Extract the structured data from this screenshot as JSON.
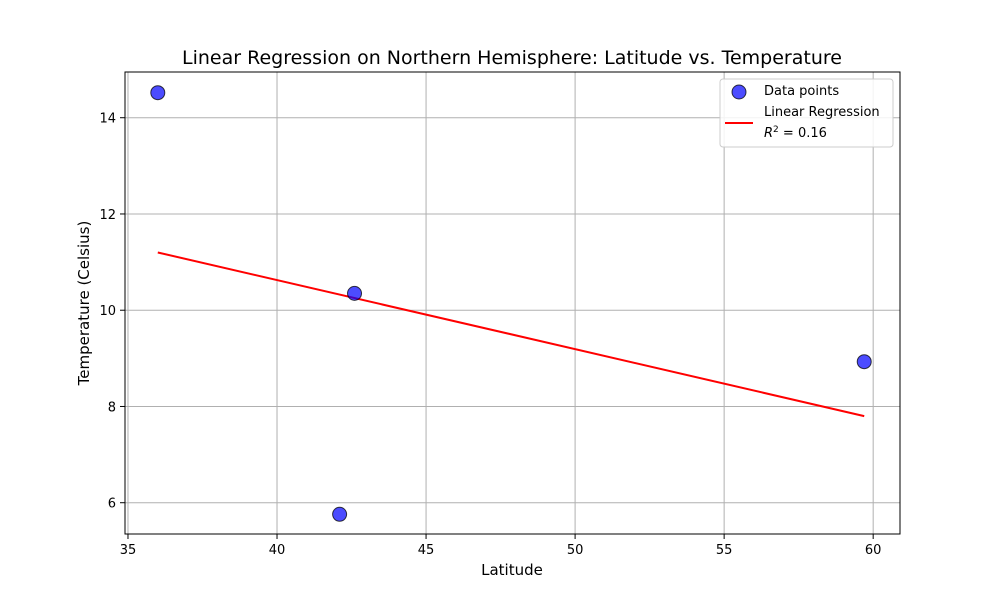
{
  "chart_data": {
    "type": "scatter",
    "title": "Linear Regression on Northern Hemisphere: Latitude vs. Temperature",
    "xlabel": "Latitude",
    "ylabel": "Temperature (Celsius)",
    "xlim": [
      34.9,
      60.9
    ],
    "ylim": [
      5.35,
      14.95
    ],
    "grid": true,
    "legend_position": "top-right",
    "x_ticks": [
      35,
      40,
      45,
      50,
      55,
      60
    ],
    "x_tick_labels": [
      "35",
      "40",
      "45",
      "50",
      "55",
      "60"
    ],
    "y_ticks": [
      6,
      8,
      10,
      12,
      14
    ],
    "y_tick_labels": [
      "6",
      "8",
      "10",
      "12",
      "14"
    ],
    "series": [
      {
        "name": "Data points",
        "kind": "scatter",
        "color": "#0000ff",
        "edge_color": "#000000",
        "points": [
          {
            "x": 36.0,
            "y": 14.52
          },
          {
            "x": 42.6,
            "y": 10.35
          },
          {
            "x": 42.1,
            "y": 5.76
          },
          {
            "x": 59.7,
            "y": 8.93
          }
        ]
      },
      {
        "name": "Linear Regression",
        "kind": "line",
        "color": "#ff0000",
        "points": [
          {
            "x": 36.0,
            "y": 11.2
          },
          {
            "x": 59.7,
            "y": 7.8
          }
        ]
      }
    ],
    "legend": {
      "items": [
        {
          "label": "Data points"
        },
        {
          "label": "Linear Regression"
        }
      ],
      "r2_label": "R",
      "r2_sup": "2",
      "r2_value": " = 0.16"
    }
  }
}
